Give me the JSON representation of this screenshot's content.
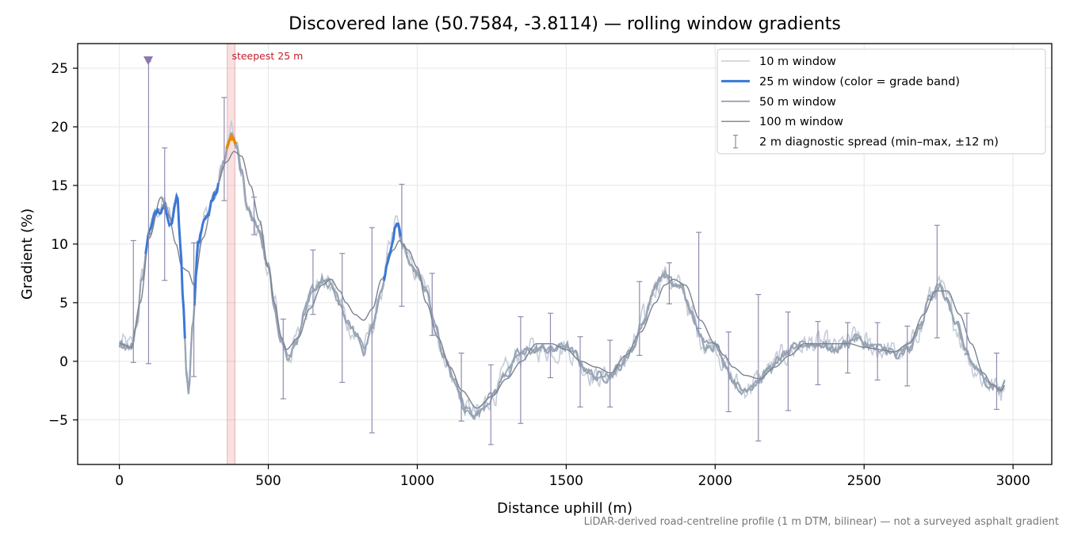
{
  "chart_data": {
    "type": "line",
    "title": "Discovered lane (50.7584, -3.8114) — rolling window gradients",
    "xlabel": "Distance uphill (m)",
    "ylabel": "Gradient (%)",
    "xlim": [
      -140,
      3130
    ],
    "ylim": [
      -8.8,
      27.1
    ],
    "xticks": [
      0,
      500,
      1000,
      1500,
      2000,
      2500,
      3000
    ],
    "yticks": [
      -5,
      0,
      5,
      10,
      15,
      20,
      25
    ],
    "tick_labels": {
      "x": [
        "0",
        "500",
        "1000",
        "1500",
        "2000",
        "2500",
        "3000"
      ],
      "y": [
        "−5",
        "0",
        "5",
        "10",
        "15",
        "20",
        "25"
      ]
    },
    "grid": true,
    "legend_position": "top-right",
    "legend": [
      {
        "label": "10 m window",
        "color": "#c5cdd8"
      },
      {
        "label": "25 m window (color = grade band)",
        "color": "#3a78d8"
      },
      {
        "label": "50 m window",
        "color": "#97a3b3"
      },
      {
        "label": "100 m window",
        "color": "#7a8290"
      },
      {
        "label": "2 m diagnostic spread (min–max, ±12 m)",
        "color": "#8f8cb0"
      }
    ],
    "anchors_50m": [
      [
        0,
        1.5
      ],
      [
        40,
        1.2
      ],
      [
        60,
        3.5
      ],
      [
        75,
        7
      ],
      [
        100,
        11
      ],
      [
        130,
        13
      ],
      [
        150,
        13.5
      ],
      [
        175,
        12
      ],
      [
        195,
        14
      ],
      [
        205,
        10
      ],
      [
        215,
        5
      ],
      [
        225,
        -1
      ],
      [
        232,
        -2.5
      ],
      [
        245,
        3
      ],
      [
        265,
        10
      ],
      [
        290,
        12.5
      ],
      [
        320,
        14
      ],
      [
        350,
        17
      ],
      [
        375,
        19.5
      ],
      [
        395,
        18
      ],
      [
        410,
        16
      ],
      [
        430,
        13
      ],
      [
        450,
        12
      ],
      [
        470,
        11
      ],
      [
        500,
        8
      ],
      [
        520,
        5
      ],
      [
        540,
        2
      ],
      [
        565,
        0.5
      ],
      [
        600,
        2
      ],
      [
        620,
        4
      ],
      [
        650,
        6
      ],
      [
        680,
        7
      ],
      [
        710,
        6.5
      ],
      [
        740,
        5
      ],
      [
        770,
        3
      ],
      [
        800,
        2
      ],
      [
        820,
        1
      ],
      [
        850,
        3
      ],
      [
        880,
        6
      ],
      [
        910,
        9.5
      ],
      [
        930,
        12
      ],
      [
        950,
        10
      ],
      [
        980,
        8
      ],
      [
        1000,
        7.5
      ],
      [
        1030,
        6
      ],
      [
        1060,
        3
      ],
      [
        1090,
        0.5
      ],
      [
        1130,
        -2
      ],
      [
        1160,
        -4
      ],
      [
        1200,
        -4.5
      ],
      [
        1250,
        -3
      ],
      [
        1300,
        -1
      ],
      [
        1340,
        0.5
      ],
      [
        1380,
        1
      ],
      [
        1420,
        1
      ],
      [
        1460,
        1
      ],
      [
        1500,
        1.3
      ],
      [
        1530,
        0.5
      ],
      [
        1560,
        -0.5
      ],
      [
        1600,
        -1.3
      ],
      [
        1640,
        -1.2
      ],
      [
        1680,
        -0.5
      ],
      [
        1720,
        1
      ],
      [
        1760,
        3.5
      ],
      [
        1800,
        6.5
      ],
      [
        1830,
        7.5
      ],
      [
        1860,
        6.5
      ],
      [
        1890,
        6.2
      ],
      [
        1920,
        4
      ],
      [
        1950,
        2
      ],
      [
        1970,
        1.5
      ],
      [
        2000,
        1.5
      ],
      [
        2030,
        0
      ],
      [
        2060,
        -1.5
      ],
      [
        2090,
        -2.5
      ],
      [
        2120,
        -2
      ],
      [
        2150,
        -1.5
      ],
      [
        2190,
        -0.5
      ],
      [
        2230,
        0.5
      ],
      [
        2270,
        1
      ],
      [
        2300,
        1.5
      ],
      [
        2330,
        1.5
      ],
      [
        2360,
        1.5
      ],
      [
        2400,
        1
      ],
      [
        2440,
        1.5
      ],
      [
        2470,
        2
      ],
      [
        2500,
        1.5
      ],
      [
        2540,
        1
      ],
      [
        2580,
        1
      ],
      [
        2610,
        0.5
      ],
      [
        2650,
        1
      ],
      [
        2690,
        3
      ],
      [
        2720,
        5.5
      ],
      [
        2750,
        6.5
      ],
      [
        2780,
        5
      ],
      [
        2810,
        3
      ],
      [
        2840,
        1
      ],
      [
        2870,
        -0.5
      ],
      [
        2900,
        -1.5
      ],
      [
        2930,
        -2
      ],
      [
        2960,
        -2.5
      ],
      [
        2975,
        -1.5
      ]
    ],
    "anchors_100m": [
      [
        0,
        1.5
      ],
      [
        40,
        1.2
      ],
      [
        70,
        5
      ],
      [
        100,
        10.5
      ],
      [
        140,
        14
      ],
      [
        165,
        12.5
      ],
      [
        190,
        10
      ],
      [
        210,
        8
      ],
      [
        230,
        7.7
      ],
      [
        250,
        6.5
      ],
      [
        280,
        10.5
      ],
      [
        320,
        14.5
      ],
      [
        360,
        17
      ],
      [
        385,
        17.9
      ],
      [
        410,
        17.5
      ],
      [
        440,
        15
      ],
      [
        470,
        12
      ],
      [
        500,
        8
      ],
      [
        520,
        5
      ],
      [
        545,
        2
      ],
      [
        560,
        1
      ],
      [
        600,
        2
      ],
      [
        640,
        4.5
      ],
      [
        680,
        6.5
      ],
      [
        710,
        7
      ],
      [
        740,
        6
      ],
      [
        760,
        5
      ],
      [
        790,
        4
      ],
      [
        820,
        3.5
      ],
      [
        850,
        4.5
      ],
      [
        880,
        7
      ],
      [
        920,
        9.5
      ],
      [
        940,
        10.3
      ],
      [
        970,
        9.5
      ],
      [
        1000,
        8
      ],
      [
        1030,
        5
      ],
      [
        1070,
        2
      ],
      [
        1110,
        -0.5
      ],
      [
        1150,
        -2.5
      ],
      [
        1200,
        -4
      ],
      [
        1250,
        -3
      ],
      [
        1300,
        -1.5
      ],
      [
        1350,
        0
      ],
      [
        1400,
        1.5
      ],
      [
        1450,
        1.5
      ],
      [
        1500,
        1
      ],
      [
        1550,
        0
      ],
      [
        1600,
        -0.5
      ],
      [
        1650,
        -1
      ],
      [
        1700,
        0.5
      ],
      [
        1750,
        2.5
      ],
      [
        1800,
        5
      ],
      [
        1830,
        6.5
      ],
      [
        1860,
        7
      ],
      [
        1900,
        6.5
      ],
      [
        1950,
        3.5
      ],
      [
        2000,
        1.5
      ],
      [
        2030,
        0.5
      ],
      [
        2060,
        -0.5
      ],
      [
        2100,
        -1.2
      ],
      [
        2150,
        -1.5
      ],
      [
        2200,
        -0.5
      ],
      [
        2250,
        0.5
      ],
      [
        2300,
        1.5
      ],
      [
        2350,
        1.5
      ],
      [
        2400,
        1.5
      ],
      [
        2450,
        1.5
      ],
      [
        2500,
        1.2
      ],
      [
        2550,
        1
      ],
      [
        2600,
        0.8
      ],
      [
        2650,
        1.5
      ],
      [
        2700,
        4
      ],
      [
        2740,
        6
      ],
      [
        2780,
        6
      ],
      [
        2820,
        4
      ],
      [
        2860,
        1.5
      ],
      [
        2900,
        -1
      ],
      [
        2930,
        -2
      ],
      [
        2960,
        -2.5
      ],
      [
        2975,
        -2
      ]
    ],
    "band_highlight_blue": [
      [
        88,
        220
      ],
      [
        250,
        335
      ],
      [
        885,
        945
      ]
    ],
    "band_highlight_orange": [
      [
        360,
        395
      ]
    ],
    "steepest_window": {
      "label": "steepest 25 m",
      "x_range": [
        362,
        388
      ]
    },
    "marker": {
      "x": 97,
      "y": 25.6
    },
    "spread_bars": [
      {
        "x": 47,
        "low": -0.1,
        "high": 10.3
      },
      {
        "x": 98,
        "low": -0.2,
        "high": 25.6
      },
      {
        "x": 152,
        "low": 6.9,
        "high": 18.2
      },
      {
        "x": 250,
        "low": -1.3,
        "high": 10.1
      },
      {
        "x": 352,
        "low": 13.7,
        "high": 22.5
      },
      {
        "x": 452,
        "low": 10.8,
        "high": 14.0
      },
      {
        "x": 550,
        "low": -3.2,
        "high": 3.6
      },
      {
        "x": 650,
        "low": 4.0,
        "high": 9.5
      },
      {
        "x": 748,
        "low": -1.8,
        "high": 9.2
      },
      {
        "x": 848,
        "low": -6.1,
        "high": 11.4
      },
      {
        "x": 948,
        "low": 4.7,
        "high": 15.1
      },
      {
        "x": 1050,
        "low": 2.2,
        "high": 7.5
      },
      {
        "x": 1148,
        "low": -5.1,
        "high": 0.7
      },
      {
        "x": 1247,
        "low": -7.1,
        "high": -0.3
      },
      {
        "x": 1347,
        "low": -5.3,
        "high": 3.8
      },
      {
        "x": 1447,
        "low": -1.4,
        "high": 4.1
      },
      {
        "x": 1547,
        "low": -3.9,
        "high": 2.1
      },
      {
        "x": 1647,
        "low": -3.9,
        "high": 1.8
      },
      {
        "x": 1746,
        "low": 0.5,
        "high": 6.8
      },
      {
        "x": 1846,
        "low": 4.9,
        "high": 8.4
      },
      {
        "x": 1945,
        "low": 2.8,
        "high": 11.0
      },
      {
        "x": 2045,
        "low": -4.3,
        "high": 2.5
      },
      {
        "x": 2145,
        "low": -6.8,
        "high": 5.7
      },
      {
        "x": 2245,
        "low": -4.2,
        "high": 4.2
      },
      {
        "x": 2345,
        "low": -2.0,
        "high": 3.4
      },
      {
        "x": 2445,
        "low": -1.0,
        "high": 3.3
      },
      {
        "x": 2545,
        "low": -1.6,
        "high": 3.3
      },
      {
        "x": 2645,
        "low": -2.1,
        "high": 3.0
      },
      {
        "x": 2745,
        "low": 2.0,
        "high": 11.6
      },
      {
        "x": 2845,
        "low": 0.6,
        "high": 4.1
      },
      {
        "x": 2945,
        "low": -4.1,
        "high": 0.7
      }
    ]
  },
  "footnote": "LiDAR-derived road-centreline profile (1 m DTM, bilinear) — not a surveyed asphalt gradient"
}
